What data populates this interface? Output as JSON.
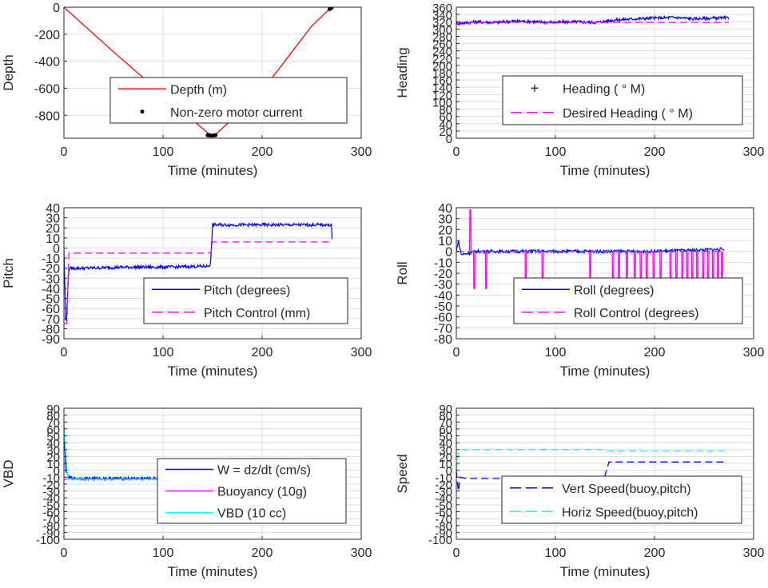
{
  "figure": {
    "colors": {
      "background": "#ffffff",
      "grid": "#dcdcdc",
      "axis": "#262626",
      "red": "#ff0000",
      "blue": "#0000ff",
      "magenta": "#ff00ff",
      "cyan": "#00ffff",
      "black": "#000000"
    }
  },
  "chart_data": [
    {
      "type": "line",
      "xlabel": "Time (minutes)",
      "ylabel": "Depth",
      "xlim": [
        0,
        300
      ],
      "ylim": [
        -970,
        0
      ],
      "xticks": [
        0,
        100,
        200,
        300
      ],
      "yticks": [
        0,
        -200,
        -400,
        -600,
        -800
      ],
      "grid": true,
      "legend_position": "center-right",
      "series": [
        {
          "name": "Depth (m)",
          "color": "#ff0000",
          "style": "solid",
          "x": [
            0,
            50,
            100,
            145,
            150,
            155,
            200,
            250,
            270
          ],
          "y": [
            0,
            -330,
            -650,
            -930,
            -950,
            -930,
            -620,
            -140,
            0
          ]
        },
        {
          "name": "Non-zero motor current",
          "color": "#000000",
          "style": "points",
          "x": [
            145,
            147,
            149,
            151,
            153,
            268,
            270
          ],
          "y": [
            -948,
            -950,
            -951,
            -950,
            -948,
            -15,
            -5
          ]
        }
      ]
    },
    {
      "type": "line",
      "xlabel": "Time (minutes)",
      "ylabel": "Heading",
      "xlim": [
        0,
        300
      ],
      "ylim": [
        0,
        360
      ],
      "xticks": [
        0,
        100,
        200,
        300
      ],
      "yticks": [
        0,
        20,
        40,
        60,
        80,
        100,
        120,
        140,
        160,
        180,
        200,
        220,
        240,
        260,
        280,
        300,
        320,
        340,
        360
      ],
      "grid": true,
      "legend_position": "lower-right",
      "series": [
        {
          "name": "Heading ( ° M)",
          "color": "#0000ff",
          "style": "noisy",
          "x": [
            0,
            20,
            40,
            60,
            80,
            100,
            120,
            140,
            160,
            180,
            200,
            220,
            240,
            260,
            275
          ],
          "y": [
            315,
            320,
            318,
            322,
            320,
            318,
            320,
            318,
            325,
            328,
            330,
            332,
            328,
            330,
            330
          ]
        },
        {
          "name": "Desired Heading ( ° M)",
          "color": "#ff00ff",
          "style": "dashed",
          "x": [
            0,
            275
          ],
          "y": [
            318,
            318
          ]
        }
      ]
    },
    {
      "type": "line",
      "xlabel": "Time (minutes)",
      "ylabel": "Pitch",
      "xlim": [
        0,
        300
      ],
      "ylim": [
        -90,
        40
      ],
      "xticks": [
        0,
        100,
        200,
        300
      ],
      "yticks": [
        40,
        30,
        20,
        10,
        0,
        -10,
        -20,
        -30,
        -40,
        -50,
        -60,
        -70,
        -80,
        -90
      ],
      "grid": true,
      "legend_position": "lower-right",
      "series": [
        {
          "name": "Pitch (degrees)",
          "color": "#0000ff",
          "style": "noisy",
          "x": [
            0,
            2,
            3,
            5,
            20,
            60,
            100,
            145,
            148,
            150,
            200,
            250,
            270,
            271
          ],
          "y": [
            0,
            -80,
            -60,
            -20,
            -20,
            -19,
            -19,
            -18,
            -16,
            23,
            23,
            23,
            23,
            -1
          ]
        },
        {
          "name": "Pitch Control (mm)",
          "color": "#ff00ff",
          "style": "dashed",
          "x": [
            0,
            3,
            5,
            148,
            150,
            270
          ],
          "y": [
            -75,
            -75,
            -5,
            -5,
            6,
            6
          ]
        }
      ]
    },
    {
      "type": "line",
      "xlabel": "Time (minutes)",
      "ylabel": "Roll",
      "xlim": [
        0,
        300
      ],
      "ylim": [
        -80,
        40
      ],
      "xticks": [
        0,
        100,
        200,
        300
      ],
      "yticks": [
        40,
        30,
        20,
        10,
        0,
        -10,
        -20,
        -30,
        -40,
        -50,
        -60,
        -70,
        -80
      ],
      "grid": true,
      "legend_position": "lower-right",
      "series": [
        {
          "name": "Roll (degrees)",
          "color": "#0000ff",
          "style": "noisy",
          "x": [
            0,
            2,
            5,
            20,
            100,
            200,
            270
          ],
          "y": [
            0,
            10,
            -3,
            0,
            0,
            0,
            2
          ]
        },
        {
          "name": "Roll Control (degrees)",
          "color": "#ff00ff",
          "style": "dashed",
          "x": [
            0,
            270
          ],
          "y": [
            0,
            0
          ],
          "spikes": [
            {
              "x": 14,
              "y": 38
            },
            {
              "x": 18,
              "y": -34
            },
            {
              "x": 30,
              "y": -34
            },
            {
              "x": 70,
              "y": -34
            },
            {
              "x": 87,
              "y": -34
            },
            {
              "x": 135,
              "y": -24
            },
            {
              "x": 158,
              "y": -34
            },
            {
              "x": 164,
              "y": -34
            },
            {
              "x": 172,
              "y": -34
            },
            {
              "x": 180,
              "y": -34
            },
            {
              "x": 186,
              "y": -34
            },
            {
              "x": 192,
              "y": -34
            },
            {
              "x": 199,
              "y": -34
            },
            {
              "x": 206,
              "y": -34
            },
            {
              "x": 216,
              "y": -34
            },
            {
              "x": 222,
              "y": -34
            },
            {
              "x": 228,
              "y": -34
            },
            {
              "x": 233,
              "y": -34
            },
            {
              "x": 238,
              "y": -34
            },
            {
              "x": 243,
              "y": -34
            },
            {
              "x": 249,
              "y": -34
            },
            {
              "x": 254,
              "y": -34
            },
            {
              "x": 259,
              "y": -34
            },
            {
              "x": 264,
              "y": -34
            },
            {
              "x": 268,
              "y": -30
            }
          ]
        }
      ]
    },
    {
      "type": "line",
      "xlabel": "Time (minutes)",
      "ylabel": "VBD",
      "xlim": [
        0,
        300
      ],
      "ylim": [
        -100,
        90
      ],
      "xticks": [
        0,
        100,
        200,
        300
      ],
      "yticks": [
        90,
        80,
        70,
        60,
        50,
        40,
        30,
        20,
        10,
        0,
        -10,
        -20,
        -30,
        -40,
        -50,
        -60,
        -70,
        -80,
        -90,
        -100
      ],
      "grid": true,
      "legend_position": "lower-right",
      "series": [
        {
          "name": "W = dz/dt (cm/s)",
          "color": "#0000ff",
          "style": "noisy",
          "x": [
            0,
            2,
            4,
            10,
            50,
            100,
            145,
            148,
            150,
            155,
            200,
            250,
            270,
            272
          ],
          "y": [
            60,
            0,
            -10,
            -12,
            -12,
            -12,
            -12,
            -10,
            14,
            14,
            14,
            14,
            13,
            0
          ]
        },
        {
          "name": "Buoyancy (10g)",
          "color": "#ff00ff",
          "style": "solid",
          "x": [
            0,
            150,
            151,
            270
          ],
          "y": [
            -13,
            -13,
            12,
            12
          ]
        },
        {
          "name": "VBD (10 cc)",
          "color": "#00ffff",
          "style": "solid",
          "x": [
            0,
            2,
            4,
            148,
            152,
            270
          ],
          "y": [
            65,
            20,
            -13,
            -13,
            12,
            12
          ]
        }
      ]
    },
    {
      "type": "line",
      "xlabel": "Time (minutes)",
      "ylabel": "Speed",
      "xlim": [
        0,
        300
      ],
      "ylim": [
        -100,
        90
      ],
      "xticks": [
        0,
        100,
        200,
        300
      ],
      "yticks": [
        90,
        80,
        70,
        60,
        50,
        40,
        30,
        20,
        10,
        0,
        -10,
        -20,
        -30,
        -40,
        -50,
        -60,
        -70,
        -80,
        -90,
        -100
      ],
      "grid": true,
      "legend_position": "lower-right",
      "series": [
        {
          "name": "Vert Speed(buoy,pitch)",
          "color": "#0000ff",
          "style": "dashed",
          "x": [
            0,
            2,
            4,
            10,
            145,
            150,
            154,
            270
          ],
          "y": [
            0,
            -30,
            -10,
            -12,
            -12,
            -8,
            12,
            12
          ]
        },
        {
          "name": "Horiz Speed(buoy,pitch)",
          "color": "#00ffff",
          "style": "dashed",
          "x": [
            0,
            2,
            4,
            150,
            152,
            270
          ],
          "y": [
            0,
            25,
            30,
            30,
            28,
            28
          ]
        }
      ]
    }
  ]
}
